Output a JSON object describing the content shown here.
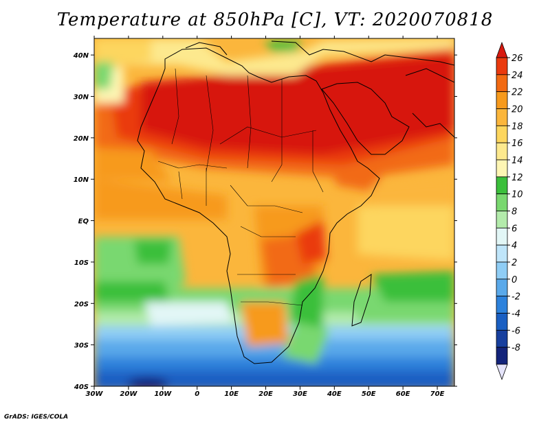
{
  "title": "Temperature at 850hPa [C], VT: 2020070818",
  "credit": "GrADS: IGES/COLA",
  "map": {
    "lon_ticks": [
      "30W",
      "20W",
      "10W",
      "0",
      "10E",
      "20E",
      "30E",
      "40E",
      "50E",
      "60E",
      "70E"
    ],
    "lat_ticks": [
      "40N",
      "30N",
      "20N",
      "10N",
      "EQ",
      "10S",
      "20S",
      "30S",
      "40S"
    ],
    "lon_range": [
      -30,
      75
    ],
    "lat_range": [
      -40,
      44
    ]
  },
  "colorbar": {
    "labels": [
      "26",
      "24",
      "22",
      "20",
      "18",
      "16",
      "14",
      "12",
      "10",
      "8",
      "6",
      "4",
      "2",
      "0",
      "-2",
      "-4",
      "-6",
      "-8"
    ],
    "colors_top_to_bottom": [
      "#d7190f",
      "#ea3a0e",
      "#f26a12",
      "#f79a1d",
      "#fbb63c",
      "#fdd65e",
      "#fde98e",
      "#fef6b4",
      "#3bbf3b",
      "#79d86f",
      "#b3ebab",
      "#e2f6f6",
      "#bfe5fa",
      "#8fcdf5",
      "#5aa9ea",
      "#2d82dc",
      "#1a5fc2",
      "#173f9e",
      "#13237a",
      "#e5e4fa"
    ]
  }
}
